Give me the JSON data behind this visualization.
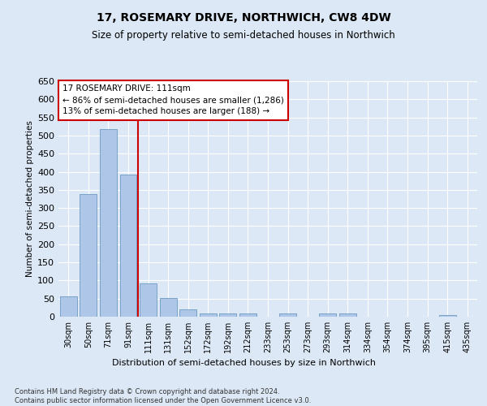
{
  "title": "17, ROSEMARY DRIVE, NORTHWICH, CW8 4DW",
  "subtitle": "Size of property relative to semi-detached houses in Northwich",
  "xlabel": "Distribution of semi-detached houses by size in Northwich",
  "ylabel": "Number of semi-detached properties",
  "categories": [
    "30sqm",
    "50sqm",
    "71sqm",
    "91sqm",
    "111sqm",
    "131sqm",
    "152sqm",
    "172sqm",
    "192sqm",
    "212sqm",
    "233sqm",
    "253sqm",
    "273sqm",
    "293sqm",
    "314sqm",
    "334sqm",
    "354sqm",
    "374sqm",
    "395sqm",
    "415sqm",
    "435sqm"
  ],
  "values": [
    55,
    338,
    518,
    393,
    92,
    51,
    20,
    10,
    10,
    8,
    0,
    10,
    0,
    10,
    10,
    0,
    0,
    0,
    0,
    5,
    0
  ],
  "bar_color": "#aec6e8",
  "bar_edge_color": "#5b8db8",
  "redline_index": 4,
  "ylim": [
    0,
    650
  ],
  "yticks": [
    0,
    50,
    100,
    150,
    200,
    250,
    300,
    350,
    400,
    450,
    500,
    550,
    600,
    650
  ],
  "annotation_text": "17 ROSEMARY DRIVE: 111sqm\n← 86% of semi-detached houses are smaller (1,286)\n13% of semi-detached houses are larger (188) →",
  "annotation_box_color": "#ffffff",
  "annotation_box_edge": "#cc0000",
  "footer": "Contains HM Land Registry data © Crown copyright and database right 2024.\nContains public sector information licensed under the Open Government Licence v3.0.",
  "background_color": "#dce8f5",
  "grid_color": "#ffffff"
}
